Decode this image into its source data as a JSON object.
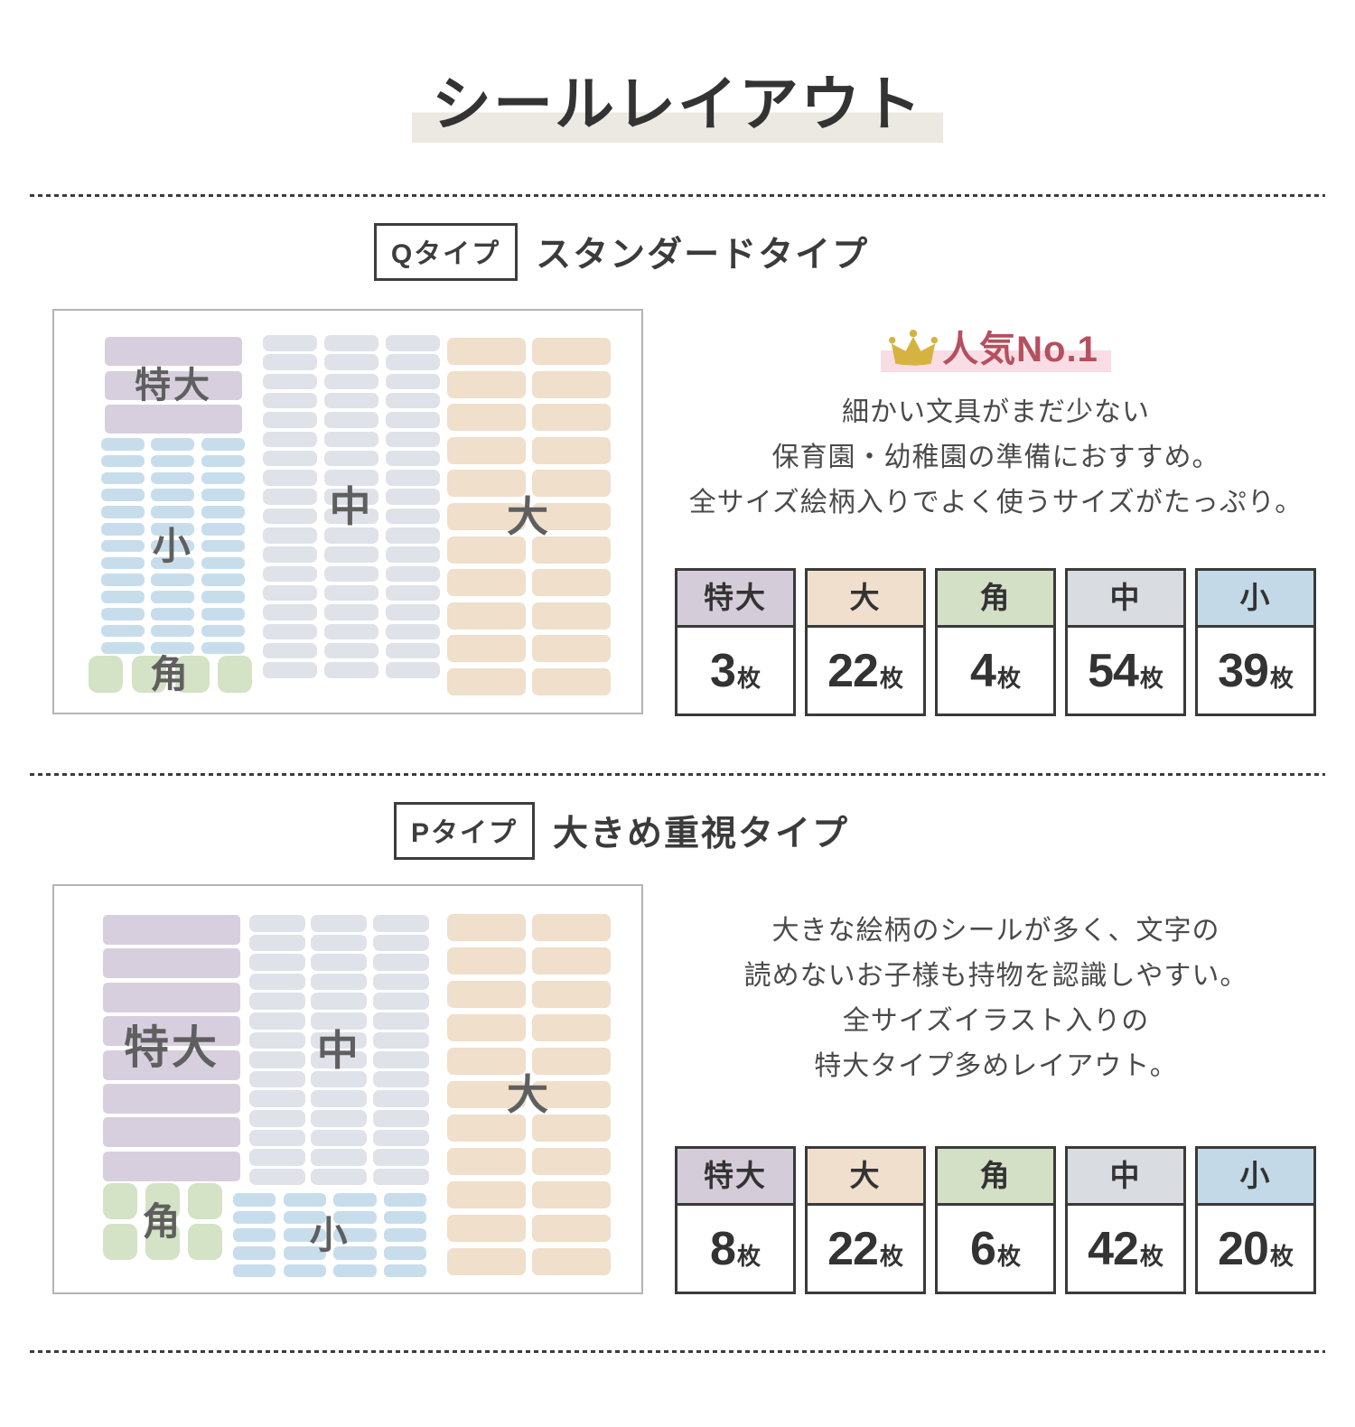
{
  "title": "シールレイアウト",
  "unit": "枚",
  "size_labels": {
    "tokudai": "特大",
    "dai": "大",
    "kaku": "角",
    "chu": "中",
    "sho": "小"
  },
  "sections": [
    {
      "id": "Q",
      "tag": "Qタイプ",
      "heading": "スタンダードタイプ",
      "badge_label": "人気No.1",
      "description": [
        "細かい文具がまだ少ない",
        "保育園・幼稚園の準備におすすめ。",
        "全サイズ絵柄入りでよく使うサイズがたっぷり。"
      ],
      "sheet_clusters": [
        {
          "key": "tokudai",
          "cols": 1,
          "rows": 3
        },
        {
          "key": "sho",
          "cols": 3,
          "rows": 13
        },
        {
          "key": "kaku",
          "cols": 4,
          "rows": 1
        },
        {
          "key": "chu",
          "cols": 3,
          "rows": 18
        },
        {
          "key": "dai",
          "cols": 2,
          "rows": 11
        }
      ],
      "table": {
        "headers": [
          "特大",
          "大",
          "角",
          "中",
          "小"
        ],
        "header_keys": [
          "tokudai",
          "dai",
          "kaku",
          "chu",
          "sho"
        ],
        "values": [
          "3",
          "22",
          "4",
          "54",
          "39"
        ]
      }
    },
    {
      "id": "P",
      "tag": "Pタイプ",
      "heading": "大きめ重視タイプ",
      "description": [
        "大きな絵柄のシールが多く、文字の",
        "読めないお子様も持物を認識しやすい。",
        "全サイズイラスト入りの",
        "特大タイプ多めレイアウト。"
      ],
      "sheet_clusters": [
        {
          "key": "tokudai",
          "cols": 1,
          "rows": 8
        },
        {
          "key": "kaku",
          "cols": 3,
          "rows": 2
        },
        {
          "key": "chu",
          "cols": 3,
          "rows": 14
        },
        {
          "key": "sho",
          "cols": 4,
          "rows": 5
        },
        {
          "key": "dai",
          "cols": 2,
          "rows": 11
        }
      ],
      "table": {
        "headers": [
          "特大",
          "大",
          "角",
          "中",
          "小"
        ],
        "header_keys": [
          "tokudai",
          "dai",
          "kaku",
          "chu",
          "sho"
        ],
        "values": [
          "8",
          "22",
          "6",
          "42",
          "20"
        ]
      }
    }
  ],
  "colors": {
    "tokudai": {
      "block": "#d8cfde",
      "header": "#d5ccda"
    },
    "dai": {
      "block": "#efdfcb",
      "header": "#f0dfcc"
    },
    "kaku": {
      "block": "#d4e2c5",
      "header": "#d4e0c6"
    },
    "chu": {
      "block": "#dfe2e8",
      "header": "#d9dce1"
    },
    "sho": {
      "block": "#c7ddec",
      "header": "#c3d9e8"
    },
    "accent_red": "#b5505e",
    "badge_pink": "#fadce4",
    "crown_gold": "#d6b341",
    "title_band": "#ece9e2",
    "text_dark": "#3e3e3e",
    "label_gray": "#5f5f5f"
  }
}
